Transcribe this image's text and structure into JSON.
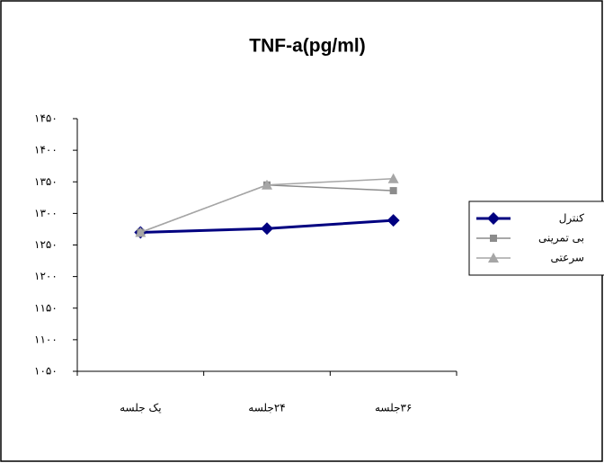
{
  "chart_data": {
    "type": "line",
    "title": "TNF-a(pg/ml)",
    "categories": [
      "یک جلسه",
      "۲۴جلسه",
      "۳۶جلسه"
    ],
    "series": [
      {
        "name": "کنترل",
        "color": "#000080",
        "marker": "diamond",
        "values": [
          1270,
          1276,
          1289
        ]
      },
      {
        "name": "بی تمرینی",
        "color": "#8c8c8c",
        "marker": "square",
        "values": [
          1270,
          1345,
          1336
        ]
      },
      {
        "name": "سرعتی",
        "color": "#a6a6a6",
        "marker": "triangle",
        "values": [
          1270,
          1345,
          1355
        ]
      }
    ],
    "ylim": [
      1050,
      1450
    ],
    "yticks": [
      {
        "value": 1050,
        "label": "۱۰۵۰"
      },
      {
        "value": 1100,
        "label": "۱۱۰۰"
      },
      {
        "value": 1150,
        "label": "۱۱۵۰"
      },
      {
        "value": 1200,
        "label": "۱۲۰۰"
      },
      {
        "value": 1250,
        "label": "۱۲۵۰"
      },
      {
        "value": 1300,
        "label": "۱۳۰۰"
      },
      {
        "value": 1350,
        "label": "۱۳۵۰"
      },
      {
        "value": 1400,
        "label": "۱۴۰۰"
      },
      {
        "value": 1450,
        "label": "۱۴۵۰"
      }
    ],
    "grid": false,
    "legend": "right"
  }
}
